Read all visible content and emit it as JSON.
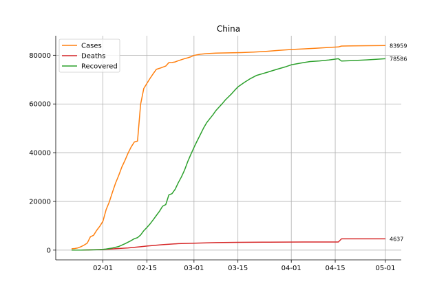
{
  "chart_data": {
    "type": "line",
    "title": "China",
    "xlabel": "",
    "ylabel": "",
    "grid": true,
    "legend_position": "top-left",
    "x_range": [
      "2020-01-22",
      "2020-05-01"
    ],
    "ylim": [
      -4000,
      88000
    ],
    "x_ticks": [
      {
        "date": "2020-02-01",
        "label": "02-01"
      },
      {
        "date": "2020-02-15",
        "label": "02-15"
      },
      {
        "date": "2020-03-01",
        "label": "03-01"
      },
      {
        "date": "2020-03-15",
        "label": "03-15"
      },
      {
        "date": "2020-04-01",
        "label": "04-01"
      },
      {
        "date": "2020-04-15",
        "label": "04-15"
      },
      {
        "date": "2020-05-01",
        "label": "05-01"
      }
    ],
    "y_ticks": [
      0,
      20000,
      40000,
      60000,
      80000
    ],
    "series": [
      {
        "name": "Cases",
        "color": "#ff7f0e",
        "end_label": "83959",
        "points": [
          [
            "2020-01-22",
            548
          ],
          [
            "2020-01-23",
            643
          ],
          [
            "2020-01-24",
            920
          ],
          [
            "2020-01-25",
            1406
          ],
          [
            "2020-01-26",
            2075
          ],
          [
            "2020-01-27",
            2877
          ],
          [
            "2020-01-28",
            5509
          ],
          [
            "2020-01-29",
            6087
          ],
          [
            "2020-01-30",
            8141
          ],
          [
            "2020-01-31",
            9802
          ],
          [
            "2020-02-01",
            11891
          ],
          [
            "2020-02-02",
            16630
          ],
          [
            "2020-02-03",
            19716
          ],
          [
            "2020-02-04",
            23707
          ],
          [
            "2020-02-05",
            27440
          ],
          [
            "2020-02-06",
            30587
          ],
          [
            "2020-02-07",
            34110
          ],
          [
            "2020-02-08",
            36814
          ],
          [
            "2020-02-09",
            39829
          ],
          [
            "2020-02-10",
            42354
          ],
          [
            "2020-02-11",
            44386
          ],
          [
            "2020-02-12",
            44759
          ],
          [
            "2020-02-13",
            59895
          ],
          [
            "2020-02-14",
            66358
          ],
          [
            "2020-02-15",
            68413
          ],
          [
            "2020-02-16",
            70513
          ],
          [
            "2020-02-17",
            72434
          ],
          [
            "2020-02-18",
            74211
          ],
          [
            "2020-02-19",
            74619
          ],
          [
            "2020-02-20",
            75077
          ],
          [
            "2020-02-21",
            75550
          ],
          [
            "2020-02-22",
            77001
          ],
          [
            "2020-02-23",
            77022
          ],
          [
            "2020-02-24",
            77241
          ],
          [
            "2020-02-25",
            77754
          ],
          [
            "2020-02-26",
            78166
          ],
          [
            "2020-02-27",
            78600
          ],
          [
            "2020-02-28",
            78928
          ],
          [
            "2020-02-29",
            79356
          ],
          [
            "2020-03-01",
            79932
          ],
          [
            "2020-03-03",
            80409
          ],
          [
            "2020-03-05",
            80651
          ],
          [
            "2020-03-08",
            80859
          ],
          [
            "2020-03-12",
            80977
          ],
          [
            "2020-03-16",
            81077
          ],
          [
            "2020-03-20",
            81300
          ],
          [
            "2020-03-24",
            81591
          ],
          [
            "2020-03-28",
            81999
          ],
          [
            "2020-04-01",
            82361
          ],
          [
            "2020-04-05",
            82602
          ],
          [
            "2020-04-09",
            82883
          ],
          [
            "2020-04-13",
            83213
          ],
          [
            "2020-04-16",
            83403
          ],
          [
            "2020-04-17",
            83760
          ],
          [
            "2020-04-20",
            83817
          ],
          [
            "2020-04-25",
            83899
          ],
          [
            "2020-05-01",
            83959
          ]
        ]
      },
      {
        "name": "Deaths",
        "color": "#d62728",
        "end_label": "4637",
        "points": [
          [
            "2020-01-22",
            17
          ],
          [
            "2020-01-25",
            42
          ],
          [
            "2020-01-28",
            131
          ],
          [
            "2020-02-01",
            259
          ],
          [
            "2020-02-05",
            563
          ],
          [
            "2020-02-09",
            908
          ],
          [
            "2020-02-13",
            1381
          ],
          [
            "2020-02-15",
            1666
          ],
          [
            "2020-02-20",
            2236
          ],
          [
            "2020-02-25",
            2664
          ],
          [
            "2020-03-01",
            2870
          ],
          [
            "2020-03-08",
            3097
          ],
          [
            "2020-03-15",
            3199
          ],
          [
            "2020-03-25",
            3287
          ],
          [
            "2020-04-05",
            3330
          ],
          [
            "2020-04-16",
            3342
          ],
          [
            "2020-04-17",
            4636
          ],
          [
            "2020-05-01",
            4637
          ]
        ]
      },
      {
        "name": "Recovered",
        "color": "#2ca02c",
        "end_label": "78586",
        "points": [
          [
            "2020-01-22",
            28
          ],
          [
            "2020-01-25",
            38
          ],
          [
            "2020-01-28",
            103
          ],
          [
            "2020-01-31",
            213
          ],
          [
            "2020-02-02",
            472
          ],
          [
            "2020-02-04",
            892
          ],
          [
            "2020-02-06",
            1487
          ],
          [
            "2020-02-08",
            2616
          ],
          [
            "2020-02-10",
            3944
          ],
          [
            "2020-02-11",
            4683
          ],
          [
            "2020-02-12",
            5113
          ],
          [
            "2020-02-13",
            6214
          ],
          [
            "2020-02-14",
            7977
          ],
          [
            "2020-02-15",
            9294
          ],
          [
            "2020-02-16",
            10748
          ],
          [
            "2020-02-17",
            12455
          ],
          [
            "2020-02-18",
            14199
          ],
          [
            "2020-02-19",
            15952
          ],
          [
            "2020-02-20",
            18002
          ],
          [
            "2020-02-21",
            18693
          ],
          [
            "2020-02-22",
            22687
          ],
          [
            "2020-02-23",
            23170
          ],
          [
            "2020-02-24",
            24990
          ],
          [
            "2020-02-25",
            27650
          ],
          [
            "2020-02-26",
            30053
          ],
          [
            "2020-02-27",
            32898
          ],
          [
            "2020-02-28",
            36291
          ],
          [
            "2020-02-29",
            39279
          ],
          [
            "2020-03-01",
            42118
          ],
          [
            "2020-03-02",
            44810
          ],
          [
            "2020-03-03",
            47404
          ],
          [
            "2020-03-04",
            49955
          ],
          [
            "2020-03-05",
            52240
          ],
          [
            "2020-03-06",
            53888
          ],
          [
            "2020-03-07",
            55478
          ],
          [
            "2020-03-08",
            57320
          ],
          [
            "2020-03-09",
            58735
          ],
          [
            "2020-03-10",
            60106
          ],
          [
            "2020-03-11",
            61644
          ],
          [
            "2020-03-12",
            62901
          ],
          [
            "2020-03-13",
            64196
          ],
          [
            "2020-03-14",
            65660
          ],
          [
            "2020-03-15",
            67017
          ],
          [
            "2020-03-17",
            68798
          ],
          [
            "2020-03-19",
            70420
          ],
          [
            "2020-03-21",
            71740
          ],
          [
            "2020-03-24",
            72861
          ],
          [
            "2020-03-27",
            74051
          ],
          [
            "2020-03-30",
            75200
          ],
          [
            "2020-04-01",
            76052
          ],
          [
            "2020-04-04",
            76760
          ],
          [
            "2020-04-07",
            77410
          ],
          [
            "2020-04-10",
            77678
          ],
          [
            "2020-04-13",
            78050
          ],
          [
            "2020-04-15",
            78401
          ],
          [
            "2020-04-16",
            78586
          ],
          [
            "2020-04-17",
            77610
          ],
          [
            "2020-04-20",
            77777
          ],
          [
            "2020-04-25",
            78100
          ],
          [
            "2020-05-01",
            78586
          ]
        ]
      }
    ]
  }
}
